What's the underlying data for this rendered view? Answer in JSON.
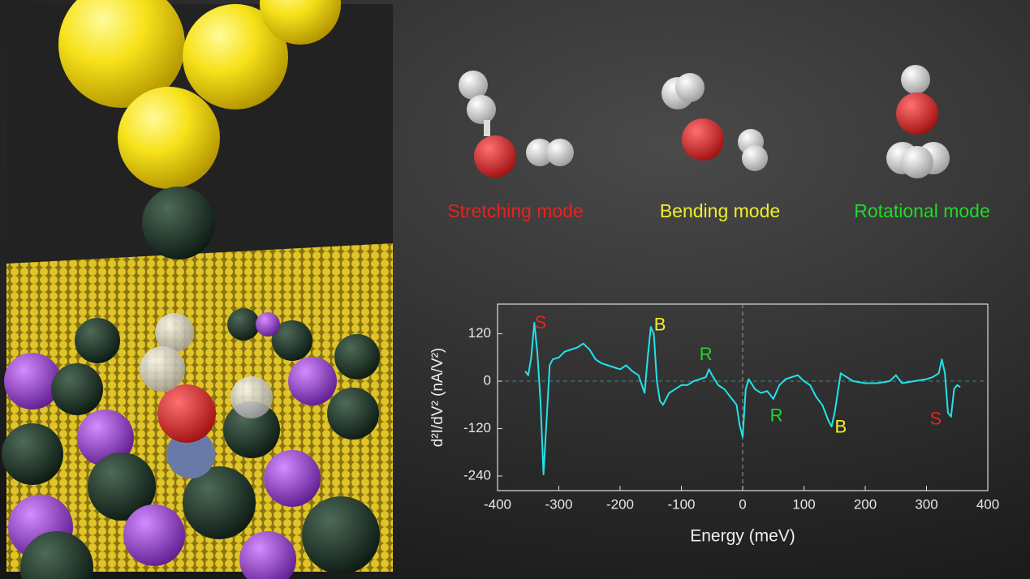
{
  "modes": [
    {
      "label": "Stretching mode",
      "color": "#e42420"
    },
    {
      "label": "Bending mode",
      "color": "#f2ee2c"
    },
    {
      "label": "Rotational mode",
      "color": "#22d82a"
    }
  ],
  "chart_data": {
    "type": "line",
    "xlabel": "Energy (meV)",
    "ylabel": "d²I/dV² (nA/V²)",
    "x": [
      -355,
      -350,
      -345,
      -340,
      -335,
      -330,
      -325,
      -320,
      -315,
      -310,
      -300,
      -290,
      -280,
      -270,
      -260,
      -250,
      -240,
      -230,
      -220,
      -210,
      -200,
      -190,
      -180,
      -170,
      -160,
      -155,
      -150,
      -145,
      -140,
      -135,
      -130,
      -120,
      -110,
      -100,
      -90,
      -80,
      -70,
      -60,
      -55,
      -50,
      -40,
      -30,
      -20,
      -10,
      -5,
      0,
      5,
      10,
      20,
      30,
      40,
      50,
      60,
      70,
      80,
      90,
      100,
      110,
      120,
      130,
      140,
      145,
      150,
      160,
      170,
      180,
      200,
      220,
      240,
      250,
      260,
      280,
      300,
      310,
      320,
      325,
      330,
      335,
      340,
      345,
      350,
      355
    ],
    "values": [
      25,
      15,
      60,
      148,
      70,
      -50,
      -236,
      -100,
      40,
      55,
      60,
      75,
      80,
      85,
      95,
      80,
      55,
      45,
      40,
      35,
      30,
      40,
      25,
      15,
      -30,
      60,
      137,
      120,
      0,
      -50,
      -60,
      -30,
      -20,
      -10,
      -10,
      0,
      5,
      10,
      30,
      15,
      -10,
      -20,
      -40,
      -60,
      -110,
      -141,
      -20,
      5,
      -20,
      -30,
      -25,
      -45,
      -10,
      5,
      10,
      15,
      0,
      -10,
      -40,
      -60,
      -100,
      -115,
      -80,
      20,
      10,
      0,
      -5,
      -5,
      0,
      15,
      -5,
      0,
      5,
      10,
      20,
      55,
      20,
      -80,
      -90,
      -20,
      -10,
      -15
    ],
    "color": "#22e3ea",
    "xlim": [
      -400,
      400
    ],
    "xticks": [
      -400,
      -300,
      -200,
      -100,
      0,
      100,
      200,
      300,
      400
    ],
    "ylim": [
      -277,
      195
    ],
    "yticks": [
      -240,
      -120,
      0,
      120
    ],
    "zero_lines": true,
    "annotations": [
      {
        "text": "S",
        "x": -330,
        "y": 145,
        "color": "#e42420"
      },
      {
        "text": "B",
        "x": -135,
        "y": 140,
        "color": "#f2ee2c"
      },
      {
        "text": "R",
        "x": -60,
        "y": 65,
        "color": "#22d82a"
      },
      {
        "text": "R",
        "x": 55,
        "y": -90,
        "color": "#22d82a"
      },
      {
        "text": "B",
        "x": 160,
        "y": -118,
        "color": "#f2ee2c"
      },
      {
        "text": "S",
        "x": 315,
        "y": -98,
        "color": "#e42420"
      }
    ]
  }
}
